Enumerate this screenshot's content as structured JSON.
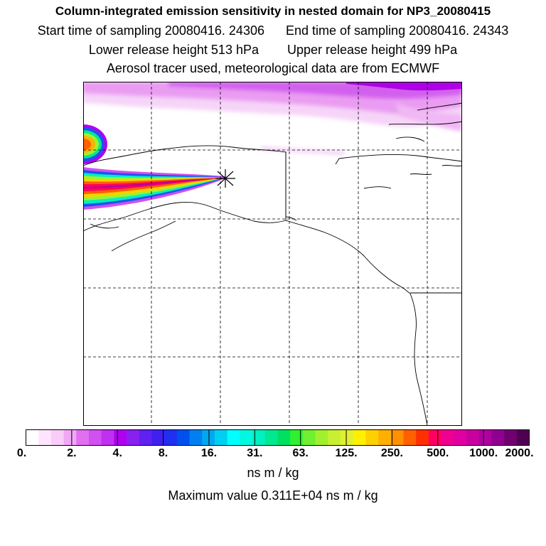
{
  "title": {
    "line1": "Column-integrated emission sensitivity in nested domain for NP3_20080415",
    "line2_start": "Start time of sampling 20080416. 24306",
    "line2_end": "End time of sampling 20080416. 24343",
    "line3_lower": "Lower release height  513 hPa",
    "line3_upper": "Upper release height  499 hPa",
    "line4": "Aerosol tracer used, meteorological data are from ECMWF"
  },
  "colorbar": {
    "labels": [
      "0.",
      "2.",
      "4.",
      "8.",
      "16.",
      "31.",
      "63.",
      "125.",
      "250.",
      "500.",
      "1000.",
      "2000."
    ],
    "colors": [
      "#ffffff",
      "#fde6fd",
      "#f9ccf9",
      "#f0a8f5",
      "#e070f0",
      "#d050f0",
      "#c030f0",
      "#b000f0",
      "#8820f0",
      "#6020f0",
      "#4020f0",
      "#2030f0",
      "#0050f0",
      "#0080f0",
      "#00a8f0",
      "#00d0f0",
      "#00ffff",
      "#00f8e0",
      "#00f0c0",
      "#00e890",
      "#00e060",
      "#30f030",
      "#70f030",
      "#a0f030",
      "#c8f030",
      "#e0f030",
      "#fff000",
      "#ffd000",
      "#ffb000",
      "#ff9000",
      "#ff6000",
      "#ff3000",
      "#ff0060",
      "#f00090",
      "#e000a0",
      "#c800a0",
      "#b000a0",
      "#900090",
      "#700070",
      "#500050"
    ],
    "units": "ns m / kg",
    "max_value": "Maximum value  0.311E+04 ns m / kg"
  }
}
